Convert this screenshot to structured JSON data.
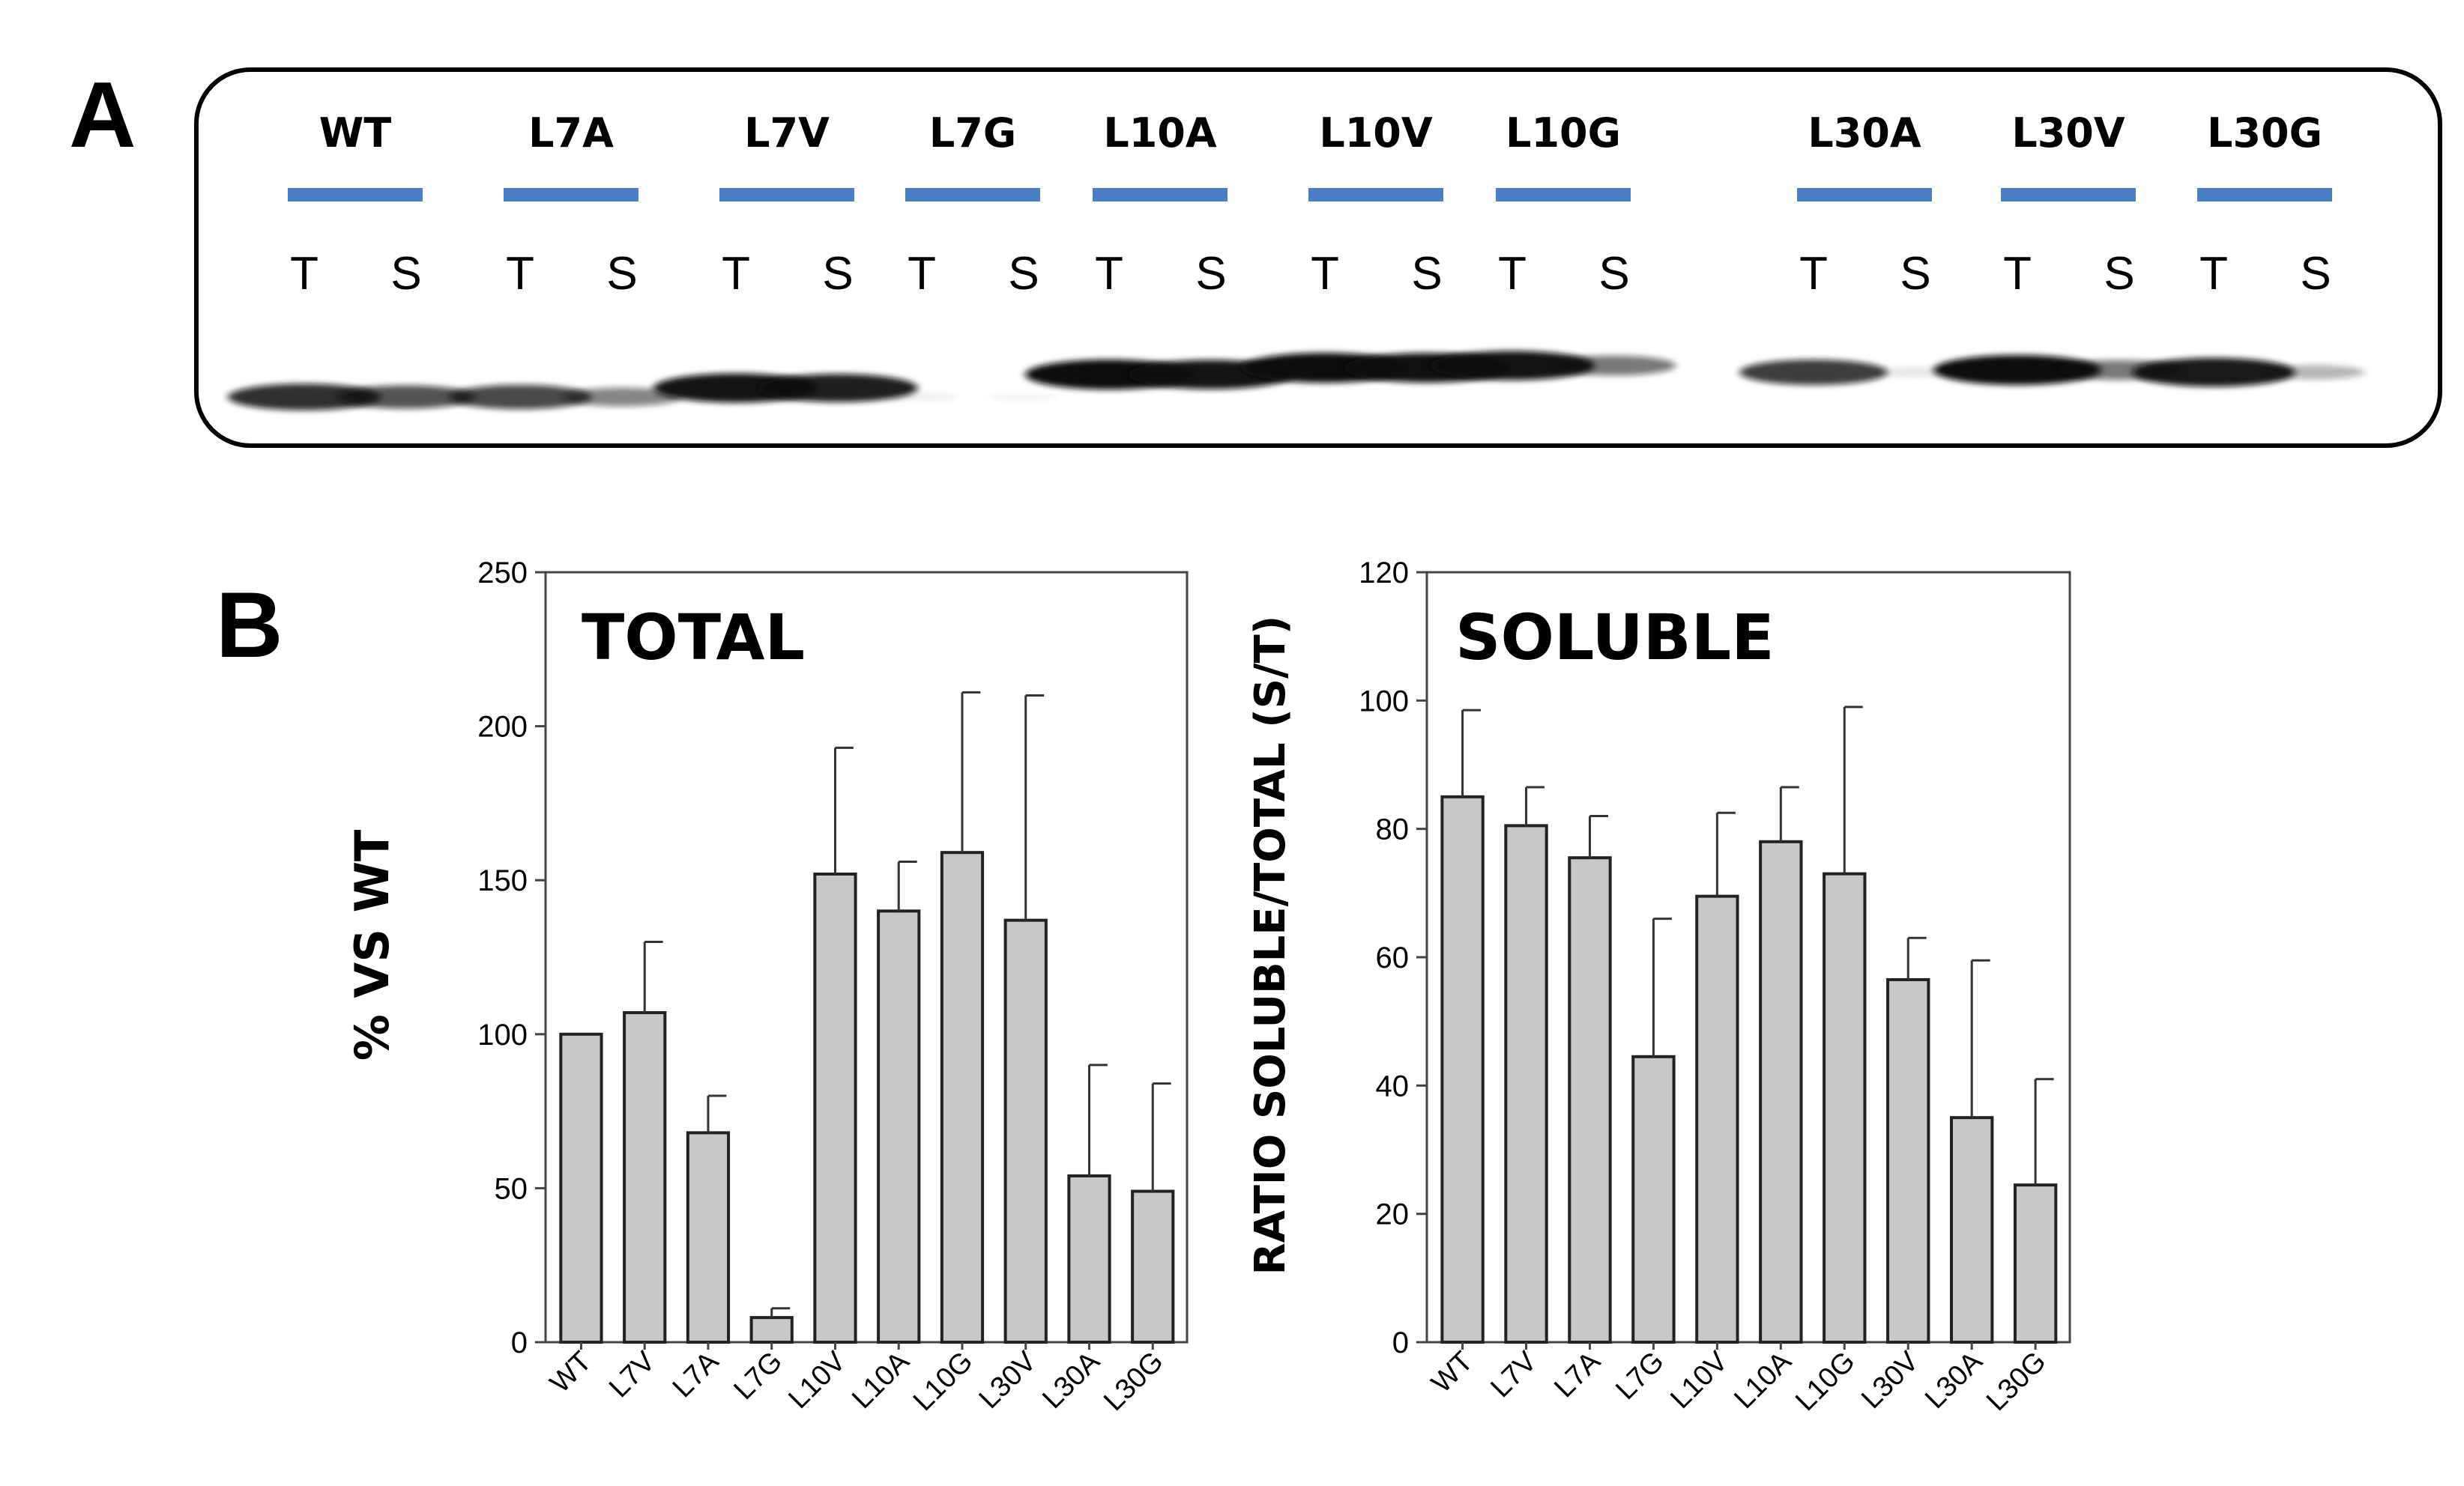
{
  "panels": {
    "a": "A",
    "b": "B"
  },
  "blot": {
    "lanes": [
      {
        "name": "WT",
        "t": "T",
        "s": "S",
        "t_intensity": 0.85,
        "s_intensity": 0.7,
        "shift": 0
      },
      {
        "name": "L7A",
        "t": "T",
        "s": "S",
        "t_intensity": 0.75,
        "s_intensity": 0.5,
        "shift": 0
      },
      {
        "name": "L7V",
        "t": "T",
        "s": "S",
        "t_intensity": 0.97,
        "s_intensity": 0.92,
        "shift": -0.2
      },
      {
        "name": "L7G",
        "t": "T",
        "s": "S",
        "t_intensity": 0.06,
        "s_intensity": 0.03,
        "shift": 0
      },
      {
        "name": "L10A",
        "t": "T",
        "s": "S",
        "t_intensity": 1.0,
        "s_intensity": 0.97,
        "shift": -0.5
      },
      {
        "name": "L10V",
        "t": "T",
        "s": "S",
        "t_intensity": 1.0,
        "s_intensity": 0.98,
        "shift": -0.65
      },
      {
        "name": "L10G",
        "t": "T",
        "s": "S",
        "t_intensity": 0.97,
        "s_intensity": 0.55,
        "shift": -0.7
      },
      {
        "name": "L30A",
        "t": "T",
        "s": "S",
        "t_intensity": 0.8,
        "s_intensity": 0.1,
        "shift": -0.55
      },
      {
        "name": "L30V",
        "t": "T",
        "s": "S",
        "t_intensity": 1.0,
        "s_intensity": 0.55,
        "shift": -0.6
      },
      {
        "name": "L30G",
        "t": "T",
        "s": "S",
        "t_intensity": 0.95,
        "s_intensity": 0.3,
        "shift": -0.55
      }
    ],
    "colors": {
      "bar": "#4a7ec4",
      "band": "#111111",
      "border": "#000000"
    }
  },
  "chart_data": [
    {
      "type": "bar",
      "title": "TOTAL",
      "ylabel": "% VS WT",
      "xlabel": "",
      "ylim": [
        0,
        250
      ],
      "yticks": [
        "0",
        "50",
        "100",
        "150",
        "200",
        "250"
      ],
      "categories": [
        "WT",
        "L7V",
        "L7A",
        "L7G",
        "L10V",
        "L10A",
        "L10G",
        "L30V",
        "L30A",
        "L30G"
      ],
      "values": [
        100,
        107,
        68,
        8,
        152,
        140,
        159,
        137,
        54,
        49
      ],
      "errors": [
        0,
        23,
        12,
        3,
        41,
        16,
        52,
        73,
        36,
        35
      ],
      "bar_color": "#c8c8c8",
      "edge_color": "#222222"
    },
    {
      "type": "bar",
      "title": "SOLUBLE",
      "ylabel": "RATIO SOLUBLE/TOTAL (S/T)",
      "xlabel": "",
      "ylim": [
        0,
        120
      ],
      "yticks": [
        "0",
        "20",
        "40",
        "60",
        "80",
        "100",
        "120"
      ],
      "categories": [
        "WT",
        "L7V",
        "L7A",
        "L7G",
        "L10V",
        "L10A",
        "L10G",
        "L30V",
        "L30A",
        "L30G"
      ],
      "values": [
        85,
        80.5,
        75.5,
        44.5,
        69.5,
        78,
        73,
        56.5,
        35,
        24.5
      ],
      "errors": [
        13.5,
        6,
        6.5,
        21.5,
        13,
        8.5,
        26,
        6.5,
        24.5,
        16.5
      ],
      "bar_color": "#c8c8c8",
      "edge_color": "#222222"
    }
  ]
}
